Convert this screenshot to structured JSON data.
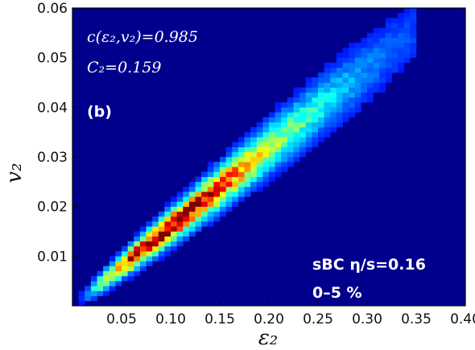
{
  "chart_data": {
    "type": "heatmap",
    "xlabel": "ε₂",
    "ylabel": "v₂",
    "xlim": [
      0.0,
      0.4
    ],
    "ylim": [
      0.0,
      0.06
    ],
    "x_ticks": [
      "0.05",
      "0.10",
      "0.15",
      "0.20",
      "0.25",
      "0.30",
      "0.35",
      "0.40"
    ],
    "y_ticks": [
      "0.01",
      "0.02",
      "0.03",
      "0.04",
      "0.05",
      "0.06"
    ],
    "colormap": "jet",
    "background_color": "#00008c",
    "annotations": {
      "correlation": "c(ε₂,v₂)=0.985",
      "C2": "C₂=0.159",
      "panel": "(b)",
      "model": "sBC η/s=0.16",
      "centrality": "0–5 %"
    },
    "density_ridge": {
      "relation": "v₂ ≈ 0.159 ε₂",
      "peak_eps2": 0.095,
      "eps2_extent": [
        0.0,
        0.35
      ]
    }
  }
}
